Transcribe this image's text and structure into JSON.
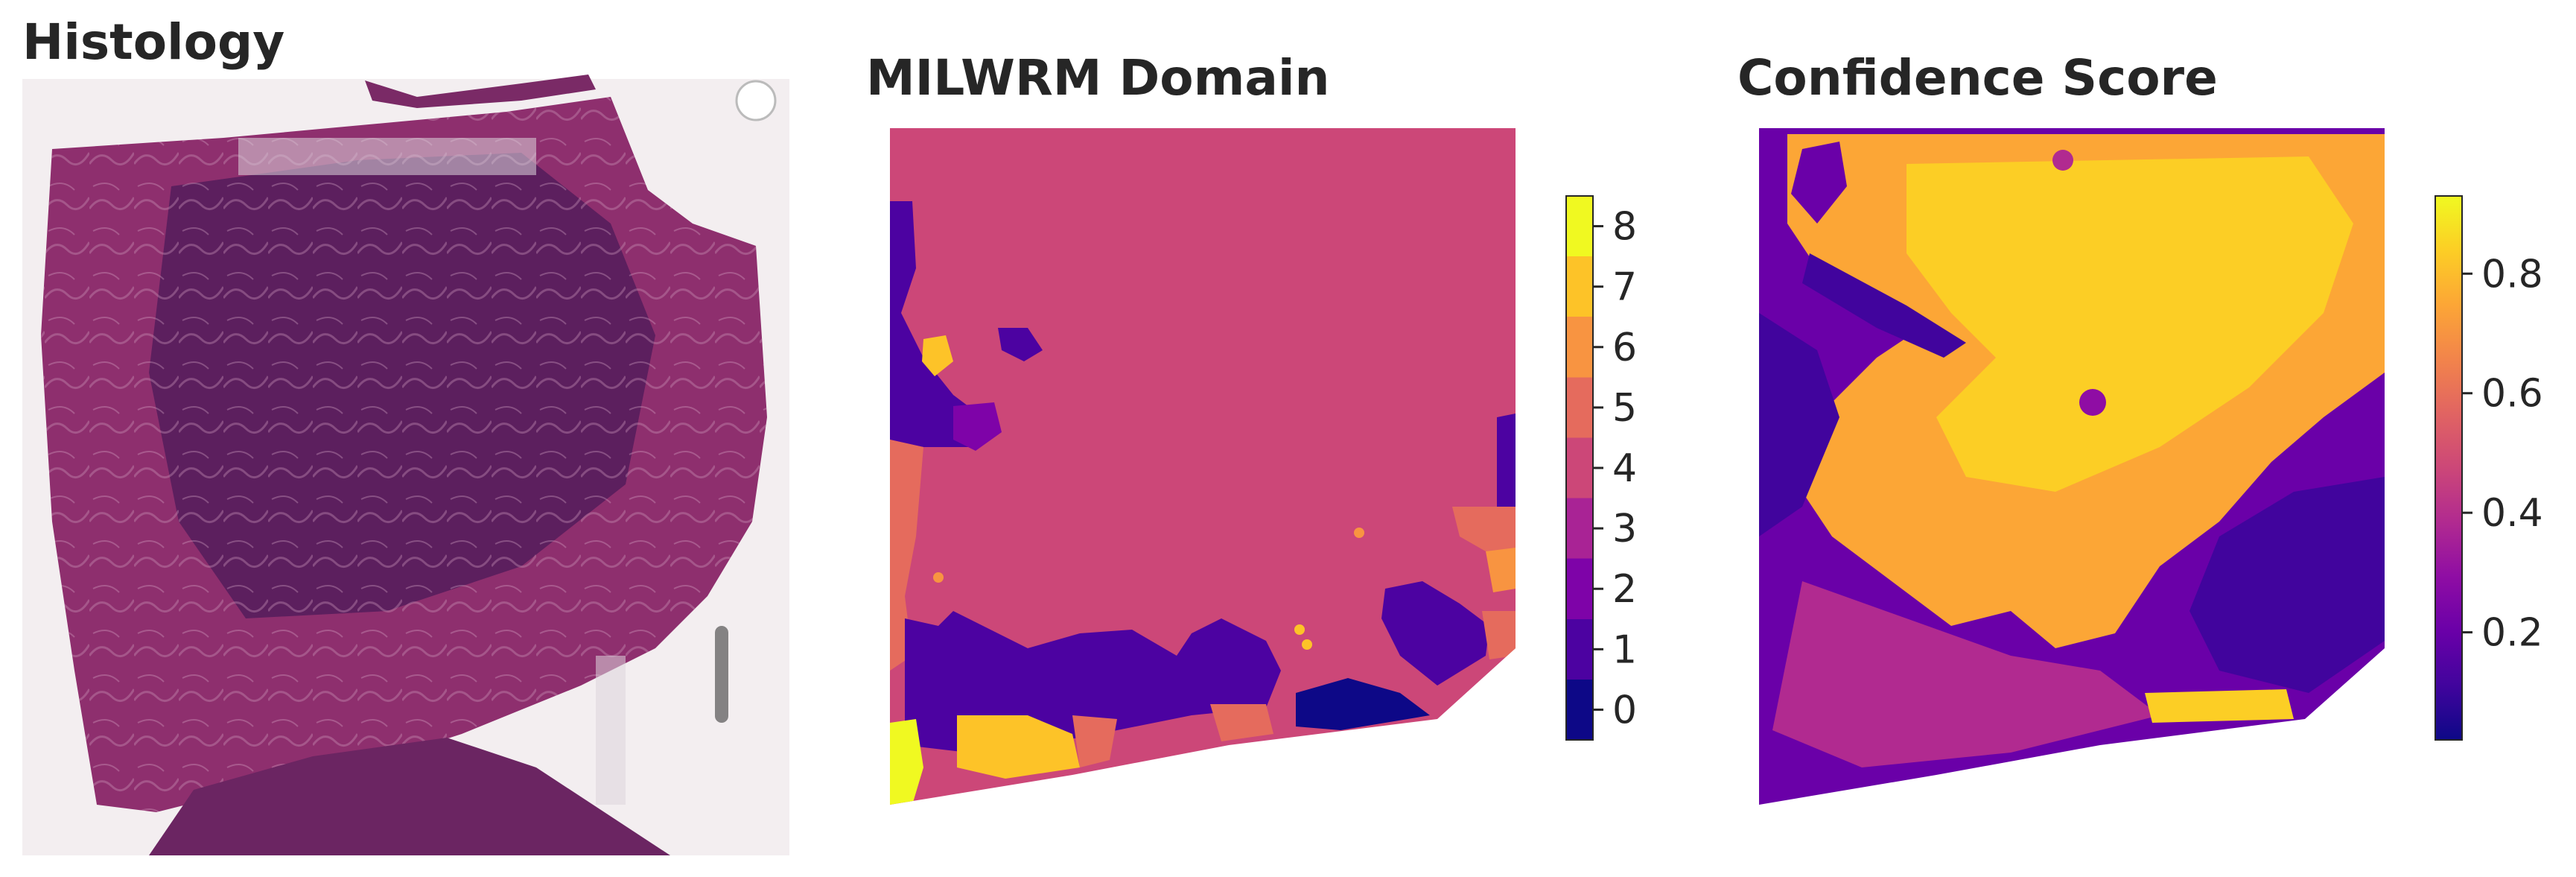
{
  "panels": {
    "histology": {
      "title": "Histology"
    },
    "domain": {
      "title": "MILWRM Domain"
    },
    "confidence": {
      "title": "Confidence Score"
    }
  },
  "colorbars": {
    "domain": {
      "colormap": "plasma",
      "ticks": [
        "0",
        "1",
        "2",
        "3",
        "4",
        "5",
        "6",
        "7",
        "8"
      ],
      "range": [
        -0.5,
        8.5
      ]
    },
    "confidence": {
      "colormap": "plasma",
      "ticks": [
        "0.2",
        "0.4",
        "0.6",
        "0.8"
      ],
      "tick_values": [
        0.2,
        0.4,
        0.6,
        0.8
      ],
      "range": [
        0.02,
        0.93
      ]
    }
  },
  "colors": {
    "plasma_stops": [
      "#0d0887",
      "#41049d",
      "#6a00a8",
      "#8f0da4",
      "#b12a90",
      "#cc4778",
      "#e16462",
      "#f2844b",
      "#fca636",
      "#fcce25",
      "#f0f921"
    ],
    "domain_levels": [
      "#0d0887",
      "#4c02a1",
      "#7e03a8",
      "#a92395",
      "#cc4778",
      "#e56b5d",
      "#f89441",
      "#fdc328",
      "#f0f921"
    ],
    "tissue_dark": "#5c1f5e",
    "tissue_pink": "#b0467a",
    "slide_bg": "#f3eef0"
  }
}
